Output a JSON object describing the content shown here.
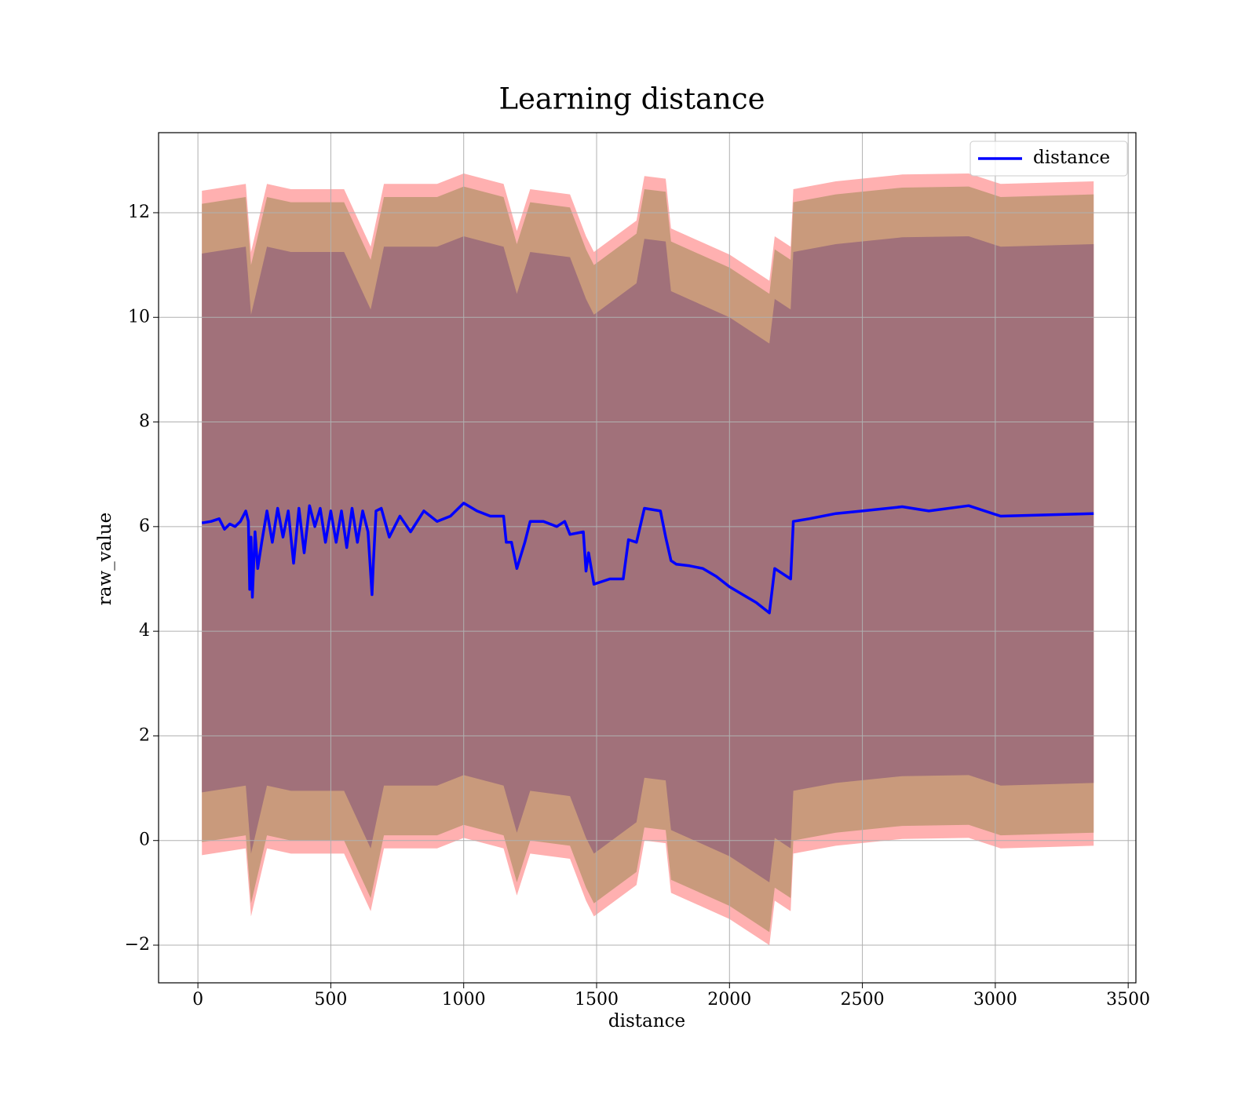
{
  "chart_data": {
    "type": "line",
    "title": "Learning distance",
    "xlabel": "distance",
    "ylabel": "raw_value",
    "xlim": [
      -148,
      3529
    ],
    "ylim": [
      -2.72,
      13.53
    ],
    "xticks": [
      0,
      500,
      1000,
      1500,
      2000,
      2500,
      3000,
      3500
    ],
    "yticks": [
      {
        "value": -2,
        "label": "−2"
      },
      0,
      2,
      4,
      6,
      8,
      10,
      12
    ],
    "grid": true,
    "legend": "upper right",
    "x": [
      15,
      50,
      80,
      100,
      120,
      140,
      160,
      180,
      190,
      195,
      200,
      205,
      215,
      225,
      240,
      260,
      280,
      300,
      320,
      340,
      360,
      380,
      400,
      420,
      440,
      460,
      480,
      500,
      520,
      540,
      560,
      580,
      600,
      620,
      640,
      655,
      660,
      670,
      690,
      720,
      760,
      800,
      850,
      900,
      950,
      1000,
      1050,
      1100,
      1150,
      1160,
      1180,
      1200,
      1230,
      1250,
      1300,
      1350,
      1380,
      1400,
      1450,
      1460,
      1470,
      1490,
      1550,
      1600,
      1620,
      1650,
      1680,
      1740,
      1760,
      1780,
      1800,
      1850,
      1900,
      1950,
      2000,
      2100,
      2150,
      2170,
      2230,
      2240,
      2300,
      2400,
      2500,
      2650,
      2750,
      2900,
      3020,
      3370
    ],
    "series": [
      {
        "name": "distance",
        "color": "#0000ff",
        "values": [
          6.07,
          6.1,
          6.15,
          5.95,
          6.05,
          6.0,
          6.1,
          6.3,
          6.1,
          4.8,
          5.8,
          4.65,
          5.9,
          5.2,
          5.7,
          6.3,
          5.7,
          6.35,
          5.8,
          6.3,
          5.3,
          6.35,
          5.5,
          6.4,
          6.0,
          6.35,
          5.7,
          6.3,
          5.7,
          6.3,
          5.6,
          6.35,
          5.7,
          6.3,
          5.9,
          4.7,
          5.3,
          6.3,
          6.35,
          5.8,
          6.2,
          5.9,
          6.3,
          6.1,
          6.2,
          6.45,
          6.3,
          6.2,
          6.2,
          5.7,
          5.7,
          5.2,
          5.7,
          6.1,
          6.1,
          6.0,
          6.1,
          5.85,
          5.9,
          5.15,
          5.5,
          4.9,
          5.0,
          5.0,
          5.75,
          5.7,
          6.35,
          6.3,
          5.8,
          5.35,
          5.28,
          5.25,
          5.2,
          5.05,
          4.85,
          4.55,
          4.35,
          5.2,
          5.0,
          6.1,
          6.15,
          6.25,
          6.3,
          6.38,
          6.3,
          6.4,
          6.2,
          6.25
        ]
      }
    ],
    "band_x": [
      15,
      180,
      200,
      260,
      350,
      450,
      550,
      650,
      700,
      900,
      1000,
      1150,
      1200,
      1250,
      1400,
      1460,
      1490,
      1650,
      1680,
      1760,
      1780,
      2000,
      2150,
      2170,
      2230,
      2240,
      2400,
      2650,
      2900,
      3020,
      3370
    ],
    "bands": [
      {
        "color": "#ffb0b0",
        "lower": [
          -0.28,
          -0.15,
          -1.45,
          -0.15,
          -0.25,
          -0.25,
          -0.25,
          -1.35,
          -0.15,
          -0.15,
          0.05,
          -0.15,
          -1.05,
          -0.25,
          -0.35,
          -1.15,
          -1.45,
          -0.85,
          0,
          -0.05,
          -1.0,
          -1.5,
          -2.0,
          -1.15,
          -1.35,
          -0.25,
          -0.1,
          0.03,
          0.05,
          -0.15,
          -0.1
        ],
        "upper": [
          12.42,
          12.55,
          11.25,
          12.55,
          12.45,
          12.45,
          12.45,
          11.35,
          12.55,
          12.55,
          12.75,
          12.55,
          11.65,
          12.45,
          12.35,
          11.55,
          11.25,
          11.85,
          12.7,
          12.65,
          11.7,
          11.2,
          10.7,
          11.55,
          11.35,
          12.45,
          12.6,
          12.73,
          12.75,
          12.55,
          12.6
        ]
      },
      {
        "color": "#c99a7c",
        "lower": [
          -0.03,
          0.1,
          -1.2,
          0.1,
          0,
          0,
          0,
          -1.1,
          0.1,
          0.1,
          0.3,
          0.1,
          -0.8,
          0,
          -0.1,
          -0.9,
          -1.2,
          -0.6,
          0.25,
          0.2,
          -0.75,
          -1.25,
          -1.75,
          -0.9,
          -1.1,
          0,
          0.15,
          0.28,
          0.3,
          0.1,
          0.15
        ],
        "upper": [
          12.17,
          12.3,
          11.0,
          12.3,
          12.2,
          12.2,
          12.2,
          11.1,
          12.3,
          12.3,
          12.5,
          12.3,
          11.4,
          12.2,
          12.1,
          11.3,
          11.0,
          11.6,
          12.45,
          12.4,
          11.45,
          10.95,
          10.45,
          11.3,
          11.1,
          12.2,
          12.35,
          12.48,
          12.5,
          12.3,
          12.35
        ]
      },
      {
        "color": "#a1717a",
        "lower": [
          0.92,
          1.05,
          -0.25,
          1.05,
          0.95,
          0.95,
          0.95,
          -0.15,
          1.05,
          1.05,
          1.25,
          1.05,
          0.15,
          0.95,
          0.85,
          0.05,
          -0.25,
          0.35,
          1.2,
          1.15,
          0.2,
          -0.3,
          -0.8,
          0.05,
          -0.15,
          0.95,
          1.1,
          1.23,
          1.25,
          1.05,
          1.1
        ],
        "upper": [
          11.22,
          11.35,
          10.05,
          11.35,
          11.25,
          11.25,
          11.25,
          10.15,
          11.35,
          11.35,
          11.55,
          11.35,
          10.45,
          11.25,
          11.15,
          10.35,
          10.05,
          10.65,
          11.5,
          11.45,
          10.5,
          10.0,
          9.5,
          10.35,
          10.15,
          11.25,
          11.4,
          11.53,
          11.55,
          11.35,
          11.4
        ]
      }
    ]
  }
}
